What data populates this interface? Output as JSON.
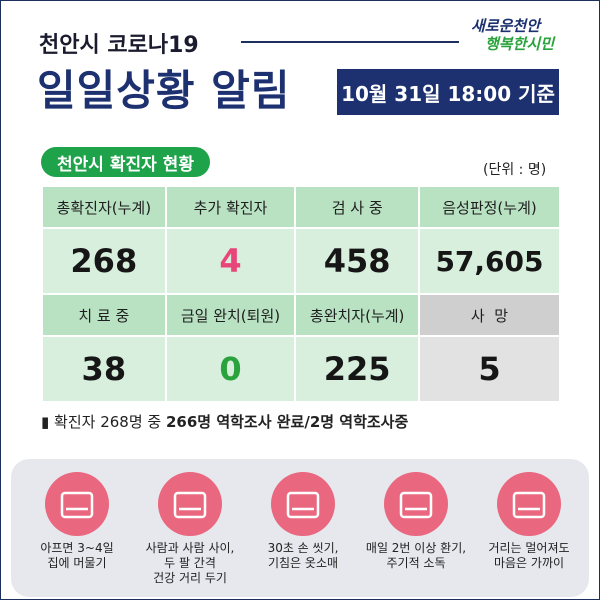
{
  "header": {
    "subtitle": "천안시 코로나19",
    "title": "일일상황 알림",
    "logo": [
      "새로운천안",
      "행복한시민"
    ],
    "date": "10월 31일 18:00 기준"
  },
  "section": {
    "title": "천안시 확진자 현황",
    "unit": "(단위 : 명)"
  },
  "table": {
    "rows": [
      [
        "총확진자(누계)",
        "추가 확진자",
        "검 사 중",
        "음성판정(누계)"
      ],
      [
        "268",
        "4",
        "458",
        "57,605"
      ],
      [
        "치 료 중",
        "금일 완치(퇴원)",
        "총완치자(누계)",
        "사  망"
      ],
      [
        "38",
        "0",
        "225",
        "5"
      ]
    ]
  },
  "note": {
    "text": "확진자 268명 중",
    "bold": "266명 역학조사 완료/2명 역학조사중"
  },
  "tips": [
    {
      "lines": [
        "아프면 3~4일",
        "집에 머물기"
      ]
    },
    {
      "lines": [
        "사람과 사람 사이,",
        "두 팔 간격",
        "건강 거리 두기"
      ]
    },
    {
      "lines": [
        "30초 손 씻기,",
        "기침은 옷소매"
      ]
    },
    {
      "lines": [
        "매일 2번 이상 환기,",
        "주기적 소독"
      ]
    },
    {
      "lines": [
        "거리는 멀어져도",
        "마음은 가까이"
      ]
    }
  ]
}
